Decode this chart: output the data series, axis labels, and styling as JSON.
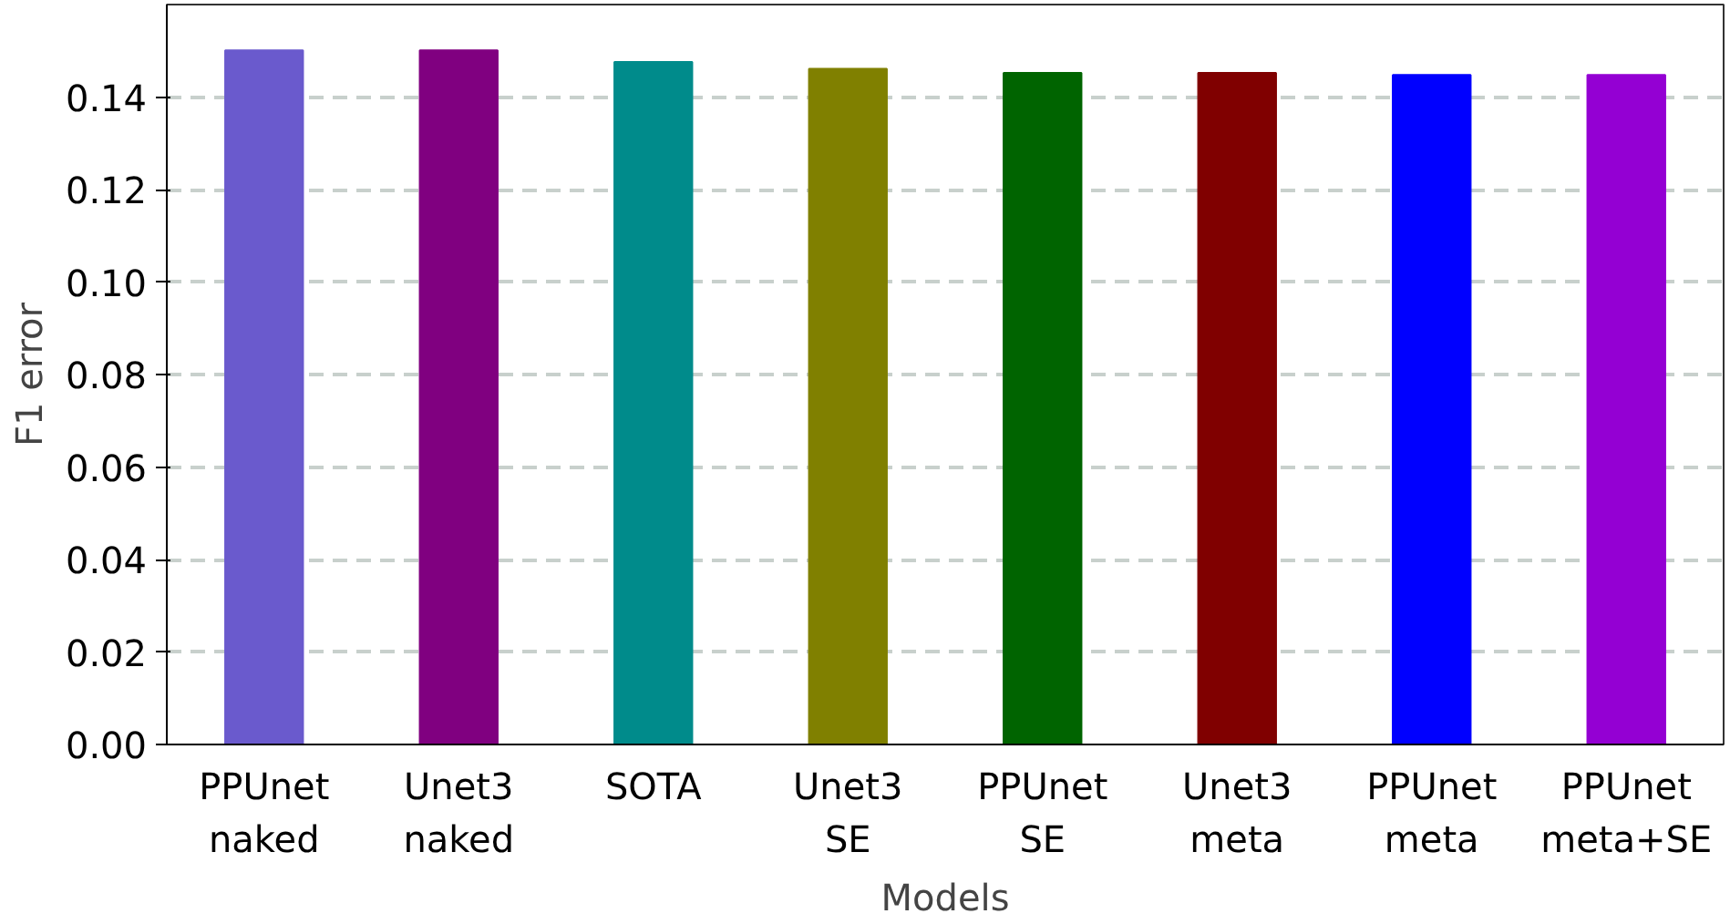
{
  "chart_data": {
    "type": "bar",
    "xlabel": "Models",
    "ylabel": "F1 error",
    "categories": [
      "PPUnet\nnaked",
      "Unet3\nnaked",
      "SOTA",
      "Unet3\nSE",
      "PPUnet\nSE",
      "Unet3\nmeta",
      "PPUnet\nmeta",
      "PPUnet\nmeta+SE"
    ],
    "values": [
      0.1501,
      0.1501,
      0.1476,
      0.1461,
      0.1452,
      0.1452,
      0.1448,
      0.1448
    ],
    "colors": [
      "#6a5acd",
      "#800080",
      "#008b8b",
      "#808000",
      "#006400",
      "#800000",
      "#0000ff",
      "#9400d3"
    ],
    "ylim": [
      0,
      0.16
    ],
    "yticks": [
      {
        "value": 0,
        "label": "0.00"
      },
      {
        "value": 0.02,
        "label": "0.02"
      },
      {
        "value": 0.04,
        "label": "0.04"
      },
      {
        "value": 0.06,
        "label": "0.06"
      },
      {
        "value": 0.08,
        "label": "0.08"
      },
      {
        "value": 0.1,
        "label": "0.10"
      },
      {
        "value": 0.12,
        "label": "0.12"
      },
      {
        "value": 0.14,
        "label": "0.14"
      }
    ],
    "grid": "y"
  }
}
